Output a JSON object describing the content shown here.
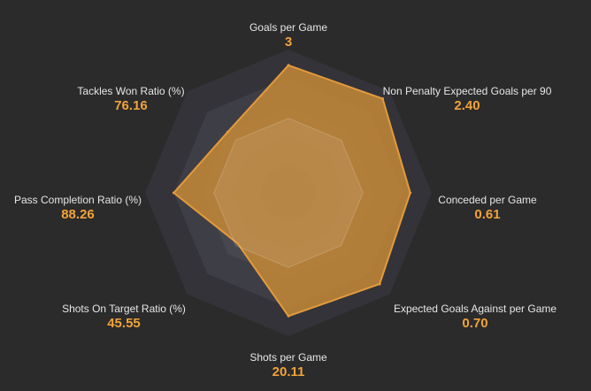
{
  "chart_data": {
    "type": "radar",
    "grid": true,
    "axes": [
      {
        "label": "Goals per Game",
        "value_text": "3",
        "fraction": 0.89
      },
      {
        "label": "Non Penalty Expected Goals per 90",
        "value_text": "2.40",
        "fraction": 0.93
      },
      {
        "label": "Conceded per Game",
        "value_text": "0.61",
        "fraction": 0.85
      },
      {
        "label": "Expected Goals Against per Game",
        "value_text": "0.70",
        "fraction": 0.9
      },
      {
        "label": "Shots per Game",
        "value_text": "20.11",
        "fraction": 0.86
      },
      {
        "label": "Shots On Target Ratio (%)",
        "value_text": "45.55",
        "fraction": 0.5
      },
      {
        "label": "Pass Completion Ratio (%)",
        "value_text": "88.26",
        "fraction": 0.8
      },
      {
        "label": "Tackles Won Ratio (%)",
        "value_text": "76.16",
        "fraction": 0.6
      }
    ]
  },
  "colors": {
    "background": "#2b2b2b",
    "grid_dark": "#333339",
    "grid_mid": "#3e3e46",
    "grid_light": "#47474f",
    "series_fill": "#c58a37",
    "series_stroke": "#e39a3c",
    "value_text": "#f2a33a",
    "label_text": "#e6e6e6"
  }
}
